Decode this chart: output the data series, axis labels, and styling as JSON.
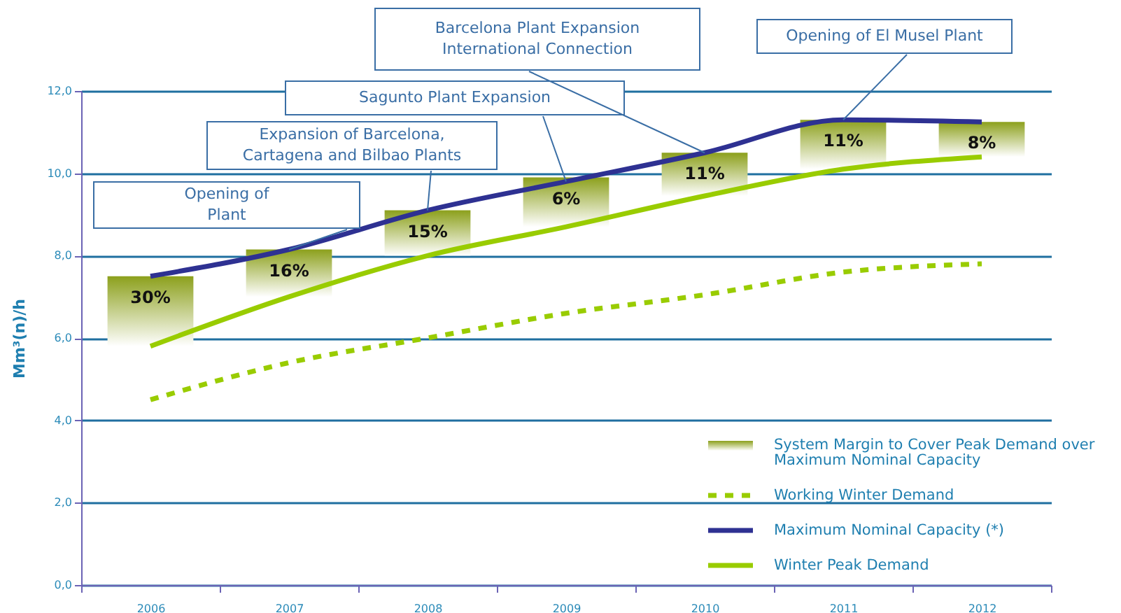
{
  "chart_data": {
    "type": "line",
    "ylabel": "Mm³(n)/h",
    "categories": [
      "2006",
      "2007",
      "2008",
      "2009",
      "2010",
      "2011",
      "2012"
    ],
    "ylim": [
      0,
      12
    ],
    "yticks": [
      {
        "value": 0,
        "label": "0,0"
      },
      {
        "value": 2,
        "label": "2,0"
      },
      {
        "value": 4,
        "label": "4,0"
      },
      {
        "value": 6,
        "label": "6,0"
      },
      {
        "value": 8,
        "label": "8,0"
      },
      {
        "value": 10,
        "label": "10,0"
      },
      {
        "value": 12,
        "label": "12,0"
      }
    ],
    "grid": "y",
    "legend": "bottom right",
    "marker": "none",
    "series": [
      {
        "name": "System Margin to Cover Peak Demand over Maximum Nominal Capacity",
        "type": "bar",
        "color": "#8ca01c",
        "base": [
          5.8,
          7.0,
          8.0,
          8.7,
          9.45,
          10.1,
          10.4
        ],
        "values": [
          1.7,
          1.15,
          1.1,
          1.2,
          1.05,
          1.2,
          0.85
        ]
      },
      {
        "name": "Working Winter Demand",
        "line_style": "dashed",
        "color": "#99cc00",
        "values": [
          4.5,
          5.4,
          6.0,
          6.6,
          7.05,
          7.6,
          7.8
        ]
      },
      {
        "name": "Maximum Nominal Capacity (*)",
        "line_style": "solid",
        "color": "#2e3192",
        "values": [
          7.5,
          8.15,
          9.1,
          9.8,
          10.5,
          11.3,
          11.25
        ]
      },
      {
        "name": "Winter Peak Demand",
        "line_style": "solid",
        "color": "#99cc00",
        "values": [
          5.8,
          7.0,
          8.0,
          8.7,
          9.45,
          10.1,
          10.4
        ]
      }
    ],
    "annotations": [
      {
        "text": "30%",
        "x": "2006",
        "y": 7.5
      },
      {
        "text": "16%",
        "x": "2007",
        "y": 8.15
      },
      {
        "text": "15%",
        "x": "2008",
        "y": 9.1
      },
      {
        "text": "6%",
        "x": "2009",
        "y": 9.9
      },
      {
        "text": "11%",
        "x": "2010",
        "y": 10.5
      },
      {
        "text": "11%",
        "x": "2011",
        "y": 11.3
      },
      {
        "text": "8%",
        "x": "2012",
        "y": 11.25
      },
      {
        "text": "Opening of \nPlant",
        "x": "2007",
        "y": 8.15
      },
      {
        "text": "Expansion of Barcelona,\nCartagena and Bilbao Plants",
        "x": "2008",
        "y": 9.1
      },
      {
        "text": "Sagunto Plant Expansion",
        "x": "2009",
        "y": 9.8
      },
      {
        "text": "Barcelona Plant Expansion\nInternational Connection",
        "x": "2010",
        "y": 10.5
      },
      {
        "text": "Opening of El Musel Plant",
        "x": "2011",
        "y": 11.3
      }
    ]
  }
}
